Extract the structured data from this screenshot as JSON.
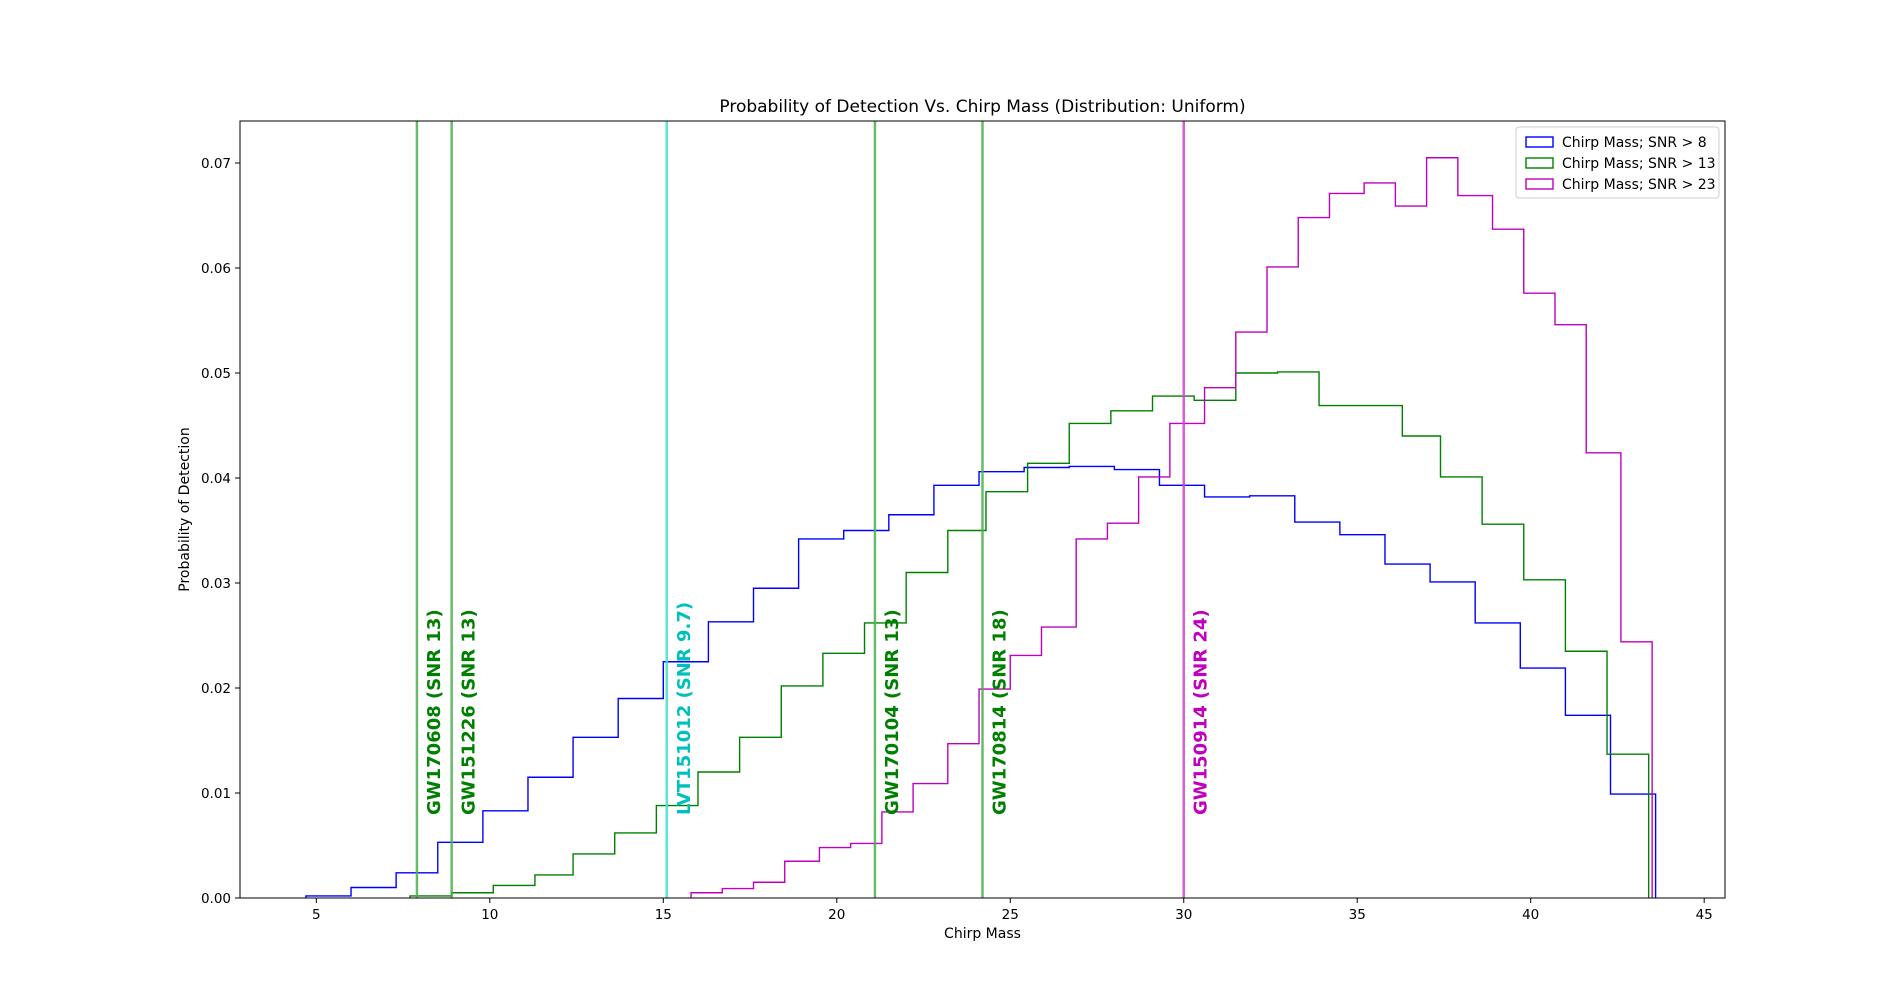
{
  "chart_data": {
    "type": "histogram-step",
    "title": "Probability of Detection Vs. Chirp Mass (Distribution: Uniform)",
    "xlabel": "Chirp Mass",
    "ylabel": "Probability of Detection",
    "xlim": [
      2.8,
      45.6
    ],
    "ylim": [
      0,
      0.074
    ],
    "xticks": [
      5,
      10,
      15,
      20,
      25,
      30,
      35,
      40,
      45
    ],
    "yticks": [
      0.0,
      0.01,
      0.02,
      0.03,
      0.04,
      0.05,
      0.06,
      0.07
    ],
    "ytick_labels": [
      "0.00",
      "0.01",
      "0.02",
      "0.03",
      "0.04",
      "0.05",
      "0.06",
      "0.07"
    ],
    "grid": false,
    "legend_position": "top-right",
    "series": [
      {
        "name": "Chirp Mass; SNR > 8",
        "color": "#0000ff",
        "edges": [
          4.7,
          6.0,
          7.3,
          8.5,
          9.8,
          11.1,
          12.4,
          13.7,
          15.0,
          16.3,
          17.6,
          18.9,
          20.2,
          21.5,
          22.8,
          24.1,
          25.4,
          26.7,
          28.0,
          29.3,
          30.6,
          31.9,
          33.2,
          34.5,
          35.8,
          37.1,
          38.4,
          39.7,
          41.0,
          42.3,
          43.6
        ],
        "values": [
          0.0002,
          0.001,
          0.0024,
          0.0053,
          0.0083,
          0.0115,
          0.0153,
          0.019,
          0.0225,
          0.0263,
          0.0295,
          0.0342,
          0.035,
          0.0365,
          0.0393,
          0.0406,
          0.041,
          0.0411,
          0.0408,
          0.0393,
          0.0382,
          0.0383,
          0.0358,
          0.0346,
          0.0318,
          0.0301,
          0.0262,
          0.0219,
          0.0174,
          0.0099
        ]
      },
      {
        "name": "Chirp Mass; SNR > 13",
        "color": "#008000",
        "edges": [
          7.7,
          8.9,
          10.1,
          11.3,
          12.4,
          13.6,
          14.8,
          16.0,
          17.2,
          18.4,
          19.6,
          20.8,
          22.0,
          23.2,
          24.3,
          25.5,
          26.7,
          27.9,
          29.1,
          30.3,
          31.5,
          32.7,
          33.9,
          35.1,
          36.3,
          37.4,
          38.6,
          39.8,
          41.0,
          42.2,
          43.4
        ],
        "values": [
          0.0002,
          0.0005,
          0.0012,
          0.0022,
          0.0042,
          0.0062,
          0.0088,
          0.012,
          0.0153,
          0.0202,
          0.0233,
          0.0262,
          0.031,
          0.035,
          0.0387,
          0.0414,
          0.0452,
          0.0464,
          0.0478,
          0.0474,
          0.05,
          0.0501,
          0.0469,
          0.0469,
          0.044,
          0.0401,
          0.0356,
          0.0303,
          0.0235,
          0.0137
        ]
      },
      {
        "name": "Chirp Mass; SNR > 23",
        "color": "#bf00bf",
        "edges": [
          15.8,
          16.7,
          17.6,
          18.5,
          19.5,
          20.4,
          21.3,
          22.2,
          23.2,
          24.1,
          25.0,
          25.9,
          26.9,
          27.8,
          28.7,
          29.6,
          30.6,
          31.5,
          32.4,
          33.3,
          34.2,
          35.2,
          36.1,
          37.0,
          37.9,
          38.9,
          39.8,
          40.7,
          41.6,
          42.6,
          43.5
        ],
        "values": [
          0.0005,
          0.0009,
          0.0015,
          0.0035,
          0.0048,
          0.0052,
          0.0082,
          0.0109,
          0.0147,
          0.0199,
          0.0231,
          0.0258,
          0.0342,
          0.0357,
          0.0401,
          0.0452,
          0.0486,
          0.0539,
          0.0601,
          0.0648,
          0.0671,
          0.0681,
          0.0659,
          0.0705,
          0.0669,
          0.0637,
          0.0576,
          0.0546,
          0.0424,
          0.0244
        ]
      }
    ],
    "events": [
      {
        "x": 7.9,
        "label": "GW170608 (SNR 13)",
        "color": "#008000",
        "line_color": "#4caf50"
      },
      {
        "x": 8.9,
        "label": "GW151226 (SNR 13)",
        "color": "#008000",
        "line_color": "#4caf50"
      },
      {
        "x": 15.1,
        "label": "LVT151012 (SNR 9.7)",
        "color": "#00bfbf",
        "line_color": "#40e0d0"
      },
      {
        "x": 21.1,
        "label": "GW170104 (SNR 13)",
        "color": "#008000",
        "line_color": "#4caf50"
      },
      {
        "x": 24.2,
        "label": "GW170814 (SNR 18)",
        "color": "#008000",
        "line_color": "#4caf50"
      },
      {
        "x": 30.0,
        "label": "GW150914 (SNR 24)",
        "color": "#bf00bf",
        "line_color": "#d040d0"
      }
    ]
  }
}
